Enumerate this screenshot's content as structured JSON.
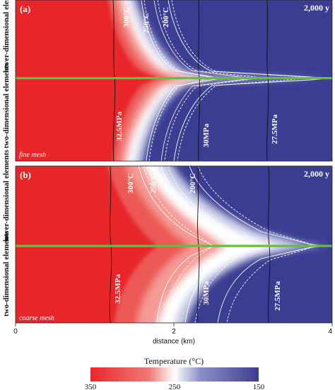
{
  "panels": [
    {
      "label": "(a)",
      "time": "2,000 y",
      "mesh": "fine mesh",
      "upper_region": "lower-dimensional elements",
      "lower_region": "two-dimensional elements",
      "temperature_contours": [
        "300°C",
        "250°C",
        "200°C"
      ],
      "pressure_contours": [
        "32.5MPa",
        "30MPa",
        "27.5MPa"
      ]
    },
    {
      "label": "(b)",
      "time": "2,000 y",
      "mesh": "coarse mesh",
      "upper_region": "lower-dimensional elements",
      "lower_region": "two-dimensional elements",
      "temperature_contours": [
        "300°C",
        "250°C",
        "200°C"
      ],
      "pressure_contours": [
        "32.5MPa",
        "30MPa",
        "27.5MPa"
      ]
    }
  ],
  "x_axis": {
    "label": "distance (km)",
    "ticks": [
      "0",
      "2",
      "4"
    ],
    "range_km": [
      0,
      4
    ]
  },
  "colorbar": {
    "title": "Temperature (°C)",
    "ticks": [
      "350",
      "250",
      "150"
    ],
    "range": [
      350,
      150
    ],
    "colors": {
      "hot": "#e8262a",
      "mid": "#ffffff",
      "cold": "#3a3d92"
    }
  },
  "fracture_color": "#5cc33a"
}
